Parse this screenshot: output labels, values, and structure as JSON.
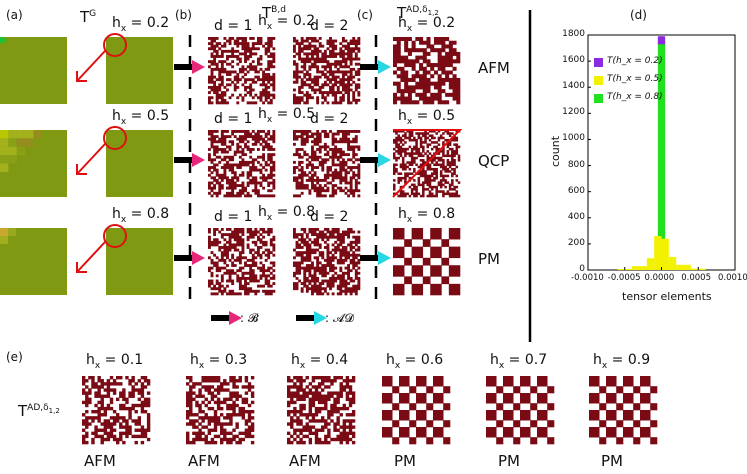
{
  "panel_labels": {
    "a": "(a)",
    "b": "(b)",
    "c": "(c)",
    "d": "(d)",
    "e": "(e)"
  },
  "tensor_labels": {
    "tg": "T",
    "tg_sup": "G",
    "tb": "T",
    "tb_sup": "B,d",
    "tad": "T",
    "tad_sup": "AD,δ",
    "tad_sub": "1,2"
  },
  "hx_label": "h",
  "hx_sub": "x",
  "rows": [
    {
      "hx": "= 0.2",
      "d1": "d = 1",
      "d2": "d = 2",
      "phase": "AFM"
    },
    {
      "hx": "= 0.5",
      "d1": "d = 1",
      "d2": "d = 2",
      "phase": "QCP"
    },
    {
      "hx": "= 0.8",
      "d1": "d = 1",
      "d2": "d = 2",
      "phase": "PM"
    }
  ],
  "arrow_legend": {
    "magenta": ": 𝓑",
    "cyan": ": 𝓐𝓓"
  },
  "bottom": [
    {
      "hx": "= 0.1",
      "phase": "AFM"
    },
    {
      "hx": "= 0.3",
      "phase": "AFM"
    },
    {
      "hx": "= 0.4",
      "phase": "AFM"
    },
    {
      "hx": "= 0.6",
      "phase": "PM"
    },
    {
      "hx": "= 0.7",
      "phase": "PM"
    },
    {
      "hx": "= 0.9",
      "phase": "PM"
    }
  ],
  "colors": {
    "maroon": "#7a0a14",
    "olive": "#7f9a12",
    "magenta": "#e6287a",
    "cyan": "#27d7e3",
    "purple": "#8a2be2",
    "yellow": "#f2f200",
    "green": "#20e020",
    "red": "#e01010"
  },
  "chart_data": {
    "type": "bar",
    "title": "",
    "xlabel": "tensor elements",
    "ylabel": "count",
    "xlim": [
      -0.001,
      0.001
    ],
    "ylim": [
      0,
      1800
    ],
    "xticks": [
      "-0.0010",
      "-0.0005",
      "0.0000",
      "0.0005",
      "0.0010"
    ],
    "yticks": [
      "0",
      "200",
      "400",
      "600",
      "800",
      "1000",
      "1200",
      "1400",
      "1600",
      "1800"
    ],
    "legend_placement": "top-left",
    "series": [
      {
        "name": "T(h_x = 0.2)",
        "color": "#8a2be2",
        "bins": [
          {
            "x0": -3e-05,
            "x1": 3e-05,
            "count": 1790
          }
        ]
      },
      {
        "name": "T(h_x = 0.5)",
        "color": "#f2f200",
        "bins": [
          {
            "x0": -0.0006,
            "x1": -0.0004,
            "count": 8
          },
          {
            "x0": -0.0004,
            "x1": -0.0002,
            "count": 30
          },
          {
            "x0": -0.0002,
            "x1": -0.0001,
            "count": 90
          },
          {
            "x0": -0.0001,
            "x1": 0.0,
            "count": 260
          },
          {
            "x0": 0.0,
            "x1": 0.0001,
            "count": 240
          },
          {
            "x0": 0.0001,
            "x1": 0.0002,
            "count": 100
          },
          {
            "x0": 0.0002,
            "x1": 0.0004,
            "count": 40
          },
          {
            "x0": 0.0004,
            "x1": 0.0006,
            "count": 10
          }
        ]
      },
      {
        "name": "T(h_x = 0.8)",
        "color": "#20e020",
        "bins": [
          {
            "x0": -5e-05,
            "x1": 5e-05,
            "count": 1750
          }
        ]
      }
    ],
    "legend_labels": [
      "T(h_x = 0.2)",
      "T(h_x = 0.5)",
      "T(h_x = 0.8)"
    ]
  }
}
